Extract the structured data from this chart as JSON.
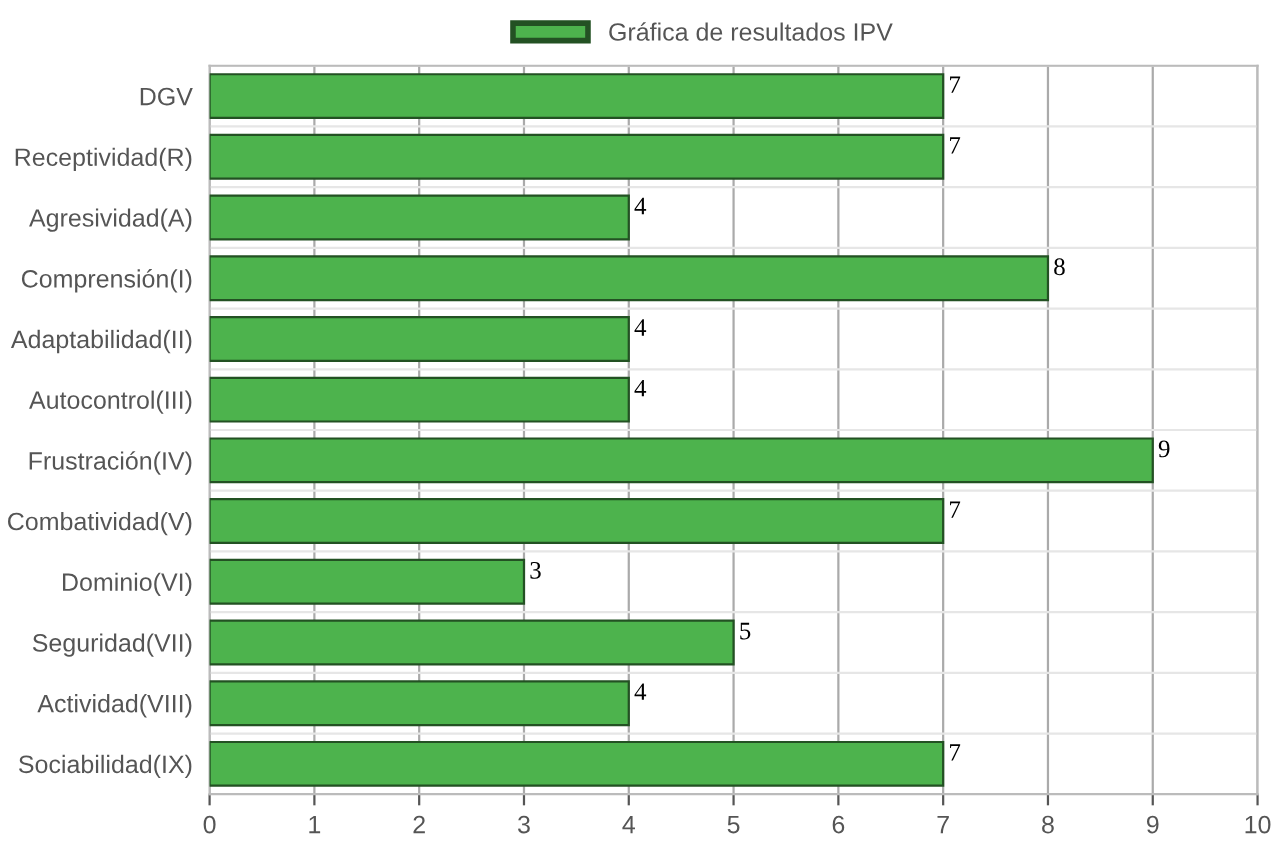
{
  "chart_data": {
    "type": "bar",
    "orientation": "horizontal",
    "categories": [
      "DGV",
      "Receptividad(R)",
      "Agresividad(A)",
      "Comprensión(I)",
      "Adaptabilidad(II)",
      "Autocontrol(III)",
      "Frustración(IV)",
      "Combatividad(V)",
      "Dominio(VI)",
      "Seguridad(VII)",
      "Actividad(VIII)",
      "Sociabilidad(IX)"
    ],
    "series": [
      {
        "name": "Gráfica de resultados IPV",
        "color": "#4db34d",
        "values": [
          7,
          7,
          4,
          8,
          4,
          4,
          9,
          7,
          3,
          5,
          4,
          7
        ]
      }
    ],
    "xlim": [
      0,
      10
    ],
    "xticks": [
      0,
      1,
      2,
      3,
      4,
      5,
      6,
      7,
      8,
      9,
      10
    ],
    "grid": true,
    "legend": "top",
    "data_labels": true
  }
}
